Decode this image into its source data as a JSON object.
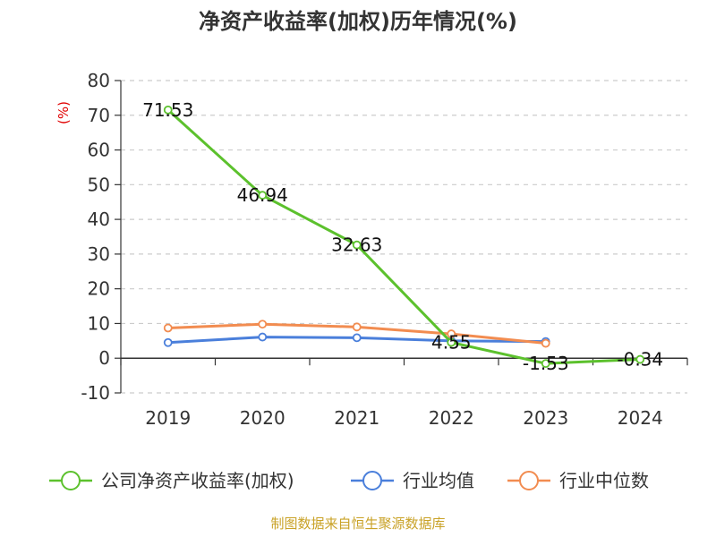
{
  "chart_data": {
    "type": "line",
    "title": "净资产收益率(加权)历年情况(%)",
    "ylabel": "(%)",
    "xlabel": "",
    "categories": [
      "2019",
      "2020",
      "2021",
      "2022",
      "2023",
      "2024"
    ],
    "ylim": [
      -10,
      80
    ],
    "yticks": [
      -10,
      0,
      10,
      20,
      30,
      40,
      50,
      60,
      70,
      80
    ],
    "grid": true,
    "legend_position": "bottom",
    "series": [
      {
        "name": "公司净资产收益率(加权)",
        "color": "#5cc12d",
        "values": [
          71.53,
          46.94,
          32.63,
          4.55,
          -1.53,
          -0.34
        ],
        "data_labels": [
          "71.53",
          "46.94",
          "32.63",
          "4.55",
          "-1.53",
          "-0.34"
        ]
      },
      {
        "name": "行业均值",
        "color": "#4a7fdb",
        "values": [
          4.5,
          6.1,
          5.9,
          5.0,
          4.8,
          null
        ]
      },
      {
        "name": "行业中位数",
        "color": "#f28c50",
        "values": [
          8.7,
          9.8,
          9.0,
          7.0,
          4.3,
          null
        ]
      }
    ]
  },
  "source": "制图数据来自恒生聚源数据库"
}
